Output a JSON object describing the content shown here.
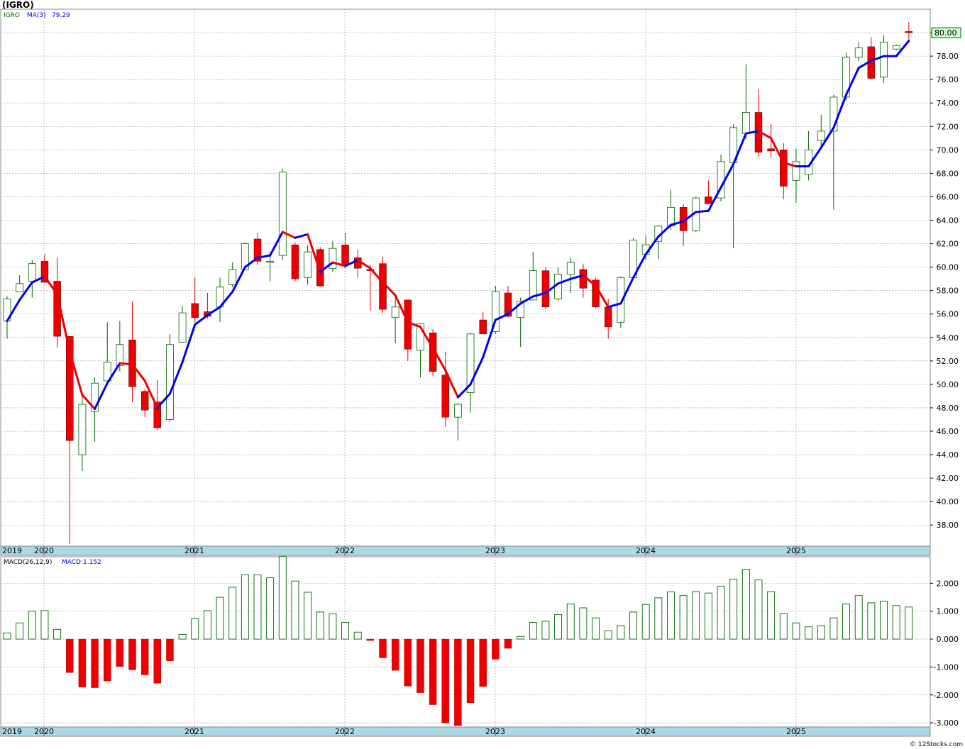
{
  "title": "(IGRO)",
  "legend": {
    "symbol": "IGRO",
    "ma_label": "MA(3)",
    "ma_value": "79.29"
  },
  "last_price_label": "80.00",
  "macd_legend": {
    "params": "MACD(26,12,9)",
    "value": "MACD:1.152"
  },
  "watermark": "© 12Stocks.com",
  "colors": {
    "up": "#006400",
    "down": "#ee0000",
    "ma_up": "#0000ee",
    "ma_down": "#ee0000",
    "axis_bar": "#add8e6",
    "grid": "#999999"
  },
  "year_labels": [
    "2019",
    "2020",
    "2021",
    "2022",
    "2023",
    "2024",
    "2025"
  ],
  "chart_data": [
    {
      "type": "candlestick",
      "y_tick_labels": [
        "38.00",
        "40.00",
        "42.00",
        "44.00",
        "46.00",
        "48.00",
        "50.00",
        "52.00",
        "54.00",
        "56.00",
        "58.00",
        "60.00",
        "62.00",
        "64.00",
        "66.00",
        "68.00",
        "70.00",
        "72.00",
        "74.00",
        "76.00",
        "78.00",
        "80.00"
      ],
      "ylim": [
        36.2,
        82
      ],
      "candles": [
        {
          "o": 55.4,
          "h": 57.5,
          "l": 53.9,
          "c": 57.3
        },
        {
          "o": 57.9,
          "h": 59.3,
          "l": 57.9,
          "c": 58.6
        },
        {
          "o": 58.8,
          "h": 60.6,
          "l": 57.4,
          "c": 60.3
        },
        {
          "o": 60.5,
          "h": 61.1,
          "l": 58.8,
          "c": 58.7
        },
        {
          "o": 58.8,
          "h": 60.8,
          "l": 53.1,
          "c": 54.1
        },
        {
          "o": 54.1,
          "h": 54.1,
          "l": 36.4,
          "c": 45.2
        },
        {
          "o": 44.0,
          "h": 49.0,
          "l": 42.6,
          "c": 48.3
        },
        {
          "o": 47.7,
          "h": 50.6,
          "l": 45.1,
          "c": 50.1
        },
        {
          "o": 50.3,
          "h": 55.3,
          "l": 49.9,
          "c": 51.9
        },
        {
          "o": 51.6,
          "h": 55.4,
          "l": 51.1,
          "c": 53.4
        },
        {
          "o": 53.8,
          "h": 57.1,
          "l": 48.5,
          "c": 49.8
        },
        {
          "o": 49.4,
          "h": 49.6,
          "l": 47.2,
          "c": 47.8
        },
        {
          "o": 48.5,
          "h": 50.4,
          "l": 46.1,
          "c": 46.3
        },
        {
          "o": 47.0,
          "h": 54.3,
          "l": 46.8,
          "c": 53.4
        },
        {
          "o": 53.6,
          "h": 56.7,
          "l": 53.6,
          "c": 56.1
        },
        {
          "o": 56.9,
          "h": 59.1,
          "l": 55.3,
          "c": 55.7
        },
        {
          "o": 56.2,
          "h": 57.8,
          "l": 55.6,
          "c": 55.8
        },
        {
          "o": 56.6,
          "h": 59.1,
          "l": 55.3,
          "c": 58.3
        },
        {
          "o": 58.5,
          "h": 60.4,
          "l": 58.3,
          "c": 59.8
        },
        {
          "o": 59.8,
          "h": 62.1,
          "l": 59.8,
          "c": 62.0
        },
        {
          "o": 62.4,
          "h": 62.9,
          "l": 60.2,
          "c": 60.5
        },
        {
          "o": 60.5,
          "h": 61.3,
          "l": 58.8,
          "c": 60.5
        },
        {
          "o": 61.0,
          "h": 68.4,
          "l": 60.6,
          "c": 68.1
        },
        {
          "o": 61.9,
          "h": 62.1,
          "l": 58.8,
          "c": 59.0
        },
        {
          "o": 59.1,
          "h": 61.9,
          "l": 58.5,
          "c": 61.3
        },
        {
          "o": 61.5,
          "h": 61.7,
          "l": 58.3,
          "c": 58.4
        },
        {
          "o": 59.9,
          "h": 62.2,
          "l": 59.6,
          "c": 61.6
        },
        {
          "o": 61.9,
          "h": 62.9,
          "l": 59.9,
          "c": 60.2
        },
        {
          "o": 60.8,
          "h": 61.5,
          "l": 59.1,
          "c": 59.9
        },
        {
          "o": 59.8,
          "h": 60.2,
          "l": 56.3,
          "c": 59.7
        },
        {
          "o": 60.3,
          "h": 60.9,
          "l": 56.1,
          "c": 56.4
        },
        {
          "o": 55.7,
          "h": 57.5,
          "l": 53.5,
          "c": 56.6
        },
        {
          "o": 57.2,
          "h": 57.2,
          "l": 52.0,
          "c": 53.0
        },
        {
          "o": 52.9,
          "h": 55.1,
          "l": 50.6,
          "c": 55.2
        },
        {
          "o": 54.4,
          "h": 54.7,
          "l": 50.7,
          "c": 51.1
        },
        {
          "o": 50.8,
          "h": 52.8,
          "l": 46.4,
          "c": 47.2
        },
        {
          "o": 47.2,
          "h": 48.4,
          "l": 45.2,
          "c": 48.3
        },
        {
          "o": 49.3,
          "h": 54.4,
          "l": 47.6,
          "c": 54.3
        },
        {
          "o": 55.5,
          "h": 56.2,
          "l": 54.3,
          "c": 54.3
        },
        {
          "o": 54.5,
          "h": 58.4,
          "l": 54.3,
          "c": 57.9
        },
        {
          "o": 57.8,
          "h": 58.4,
          "l": 55.7,
          "c": 55.8
        },
        {
          "o": 55.7,
          "h": 57.4,
          "l": 53.2,
          "c": 57.1
        },
        {
          "o": 57.2,
          "h": 61.3,
          "l": 57.2,
          "c": 59.7
        },
        {
          "o": 59.7,
          "h": 60.0,
          "l": 56.4,
          "c": 56.6
        },
        {
          "o": 57.3,
          "h": 60.0,
          "l": 57.1,
          "c": 59.4
        },
        {
          "o": 59.4,
          "h": 60.8,
          "l": 57.8,
          "c": 60.4
        },
        {
          "o": 59.8,
          "h": 60.3,
          "l": 57.4,
          "c": 58.2
        },
        {
          "o": 58.9,
          "h": 59.1,
          "l": 56.5,
          "c": 56.6
        },
        {
          "o": 56.6,
          "h": 57.3,
          "l": 53.9,
          "c": 54.9
        },
        {
          "o": 55.3,
          "h": 59.2,
          "l": 54.8,
          "c": 59.1
        },
        {
          "o": 59.1,
          "h": 62.5,
          "l": 58.9,
          "c": 62.3
        },
        {
          "o": 61.1,
          "h": 62.7,
          "l": 60.6,
          "c": 61.9
        },
        {
          "o": 62.2,
          "h": 63.6,
          "l": 60.7,
          "c": 63.5
        },
        {
          "o": 63.5,
          "h": 66.6,
          "l": 63.2,
          "c": 65.1
        },
        {
          "o": 65.1,
          "h": 65.4,
          "l": 61.8,
          "c": 63.1
        },
        {
          "o": 63.1,
          "h": 66.0,
          "l": 63.0,
          "c": 65.9
        },
        {
          "o": 66.0,
          "h": 67.4,
          "l": 65.8,
          "c": 65.4
        },
        {
          "o": 65.9,
          "h": 69.6,
          "l": 65.6,
          "c": 69.0
        },
        {
          "o": 68.9,
          "h": 72.2,
          "l": 61.6,
          "c": 71.9
        },
        {
          "o": 71.4,
          "h": 77.3,
          "l": 70.9,
          "c": 73.2
        },
        {
          "o": 73.2,
          "h": 75.2,
          "l": 69.4,
          "c": 69.8
        },
        {
          "o": 70.1,
          "h": 72.2,
          "l": 69.3,
          "c": 69.9
        },
        {
          "o": 70.0,
          "h": 70.6,
          "l": 65.8,
          "c": 66.9
        },
        {
          "o": 67.4,
          "h": 70.1,
          "l": 65.5,
          "c": 69.0
        },
        {
          "o": 67.9,
          "h": 71.6,
          "l": 67.4,
          "c": 70.0
        },
        {
          "o": 70.8,
          "h": 73.0,
          "l": 70.1,
          "c": 71.6
        },
        {
          "o": 71.6,
          "h": 74.7,
          "l": 64.9,
          "c": 74.5
        },
        {
          "o": 74.5,
          "h": 78.3,
          "l": 74.2,
          "c": 77.9
        },
        {
          "o": 77.9,
          "h": 79.2,
          "l": 77.6,
          "c": 78.7
        },
        {
          "o": 78.8,
          "h": 79.6,
          "l": 76.0,
          "c": 76.1
        },
        {
          "o": 76.2,
          "h": 79.8,
          "l": 75.7,
          "c": 79.2
        },
        {
          "o": 78.6,
          "h": 79.0,
          "l": 78.5,
          "c": 78.9
        },
        {
          "o": 80.1,
          "h": 80.9,
          "l": 79.3,
          "c": 80.0
        }
      ],
      "ma3": [
        55.4,
        57.2,
        58.7,
        59.2,
        57.7,
        52.8,
        49.1,
        47.9,
        50.1,
        51.8,
        51.7,
        50.3,
        48.0,
        49.2,
        51.9,
        55.1,
        55.9,
        56.6,
        57.9,
        60.0,
        60.8,
        61.0,
        63.0,
        62.5,
        62.8,
        59.6,
        60.4,
        60.1,
        60.6,
        59.9,
        58.7,
        57.6,
        55.3,
        54.9,
        53.1,
        51.2,
        48.9,
        50.0,
        52.3,
        55.5,
        56.0,
        56.9,
        57.5,
        57.8,
        58.6,
        59.0,
        59.3,
        58.4,
        56.6,
        56.9,
        59.1,
        61.1,
        62.6,
        63.6,
        63.9,
        64.7,
        64.8,
        66.8,
        68.8,
        71.4,
        71.6,
        71.0,
        68.9,
        68.6,
        68.6,
        70.2,
        71.9,
        74.7,
        77.0,
        77.6,
        78.0,
        78.0,
        79.3
      ]
    },
    {
      "type": "bar",
      "title": "MACD(26,12,9)",
      "y_tick_labels": [
        "-3.000",
        "-2.000",
        "-1.000",
        "0.000",
        "1.000",
        "2.000"
      ],
      "ylim": [
        -3.15,
        2.95
      ],
      "values": [
        0.22,
        0.58,
        1.0,
        1.02,
        0.35,
        -1.2,
        -1.72,
        -1.74,
        -1.5,
        -0.98,
        -1.1,
        -1.28,
        -1.58,
        -0.78,
        0.17,
        0.73,
        1.02,
        1.5,
        1.86,
        2.3,
        2.3,
        2.2,
        2.96,
        2.08,
        1.68,
        0.97,
        0.91,
        0.6,
        0.25,
        -0.05,
        -0.67,
        -1.12,
        -1.68,
        -1.92,
        -2.35,
        -3.0,
        -3.1,
        -2.28,
        -1.7,
        -0.72,
        -0.33,
        0.1,
        0.6,
        0.64,
        0.88,
        1.26,
        1.12,
        0.76,
        0.3,
        0.48,
        0.97,
        1.24,
        1.48,
        1.69,
        1.56,
        1.7,
        1.65,
        1.9,
        2.15,
        2.5,
        2.12,
        1.7,
        0.92,
        0.58,
        0.44,
        0.48,
        0.76,
        1.26,
        1.56,
        1.3,
        1.36,
        1.2,
        1.15
      ]
    }
  ]
}
